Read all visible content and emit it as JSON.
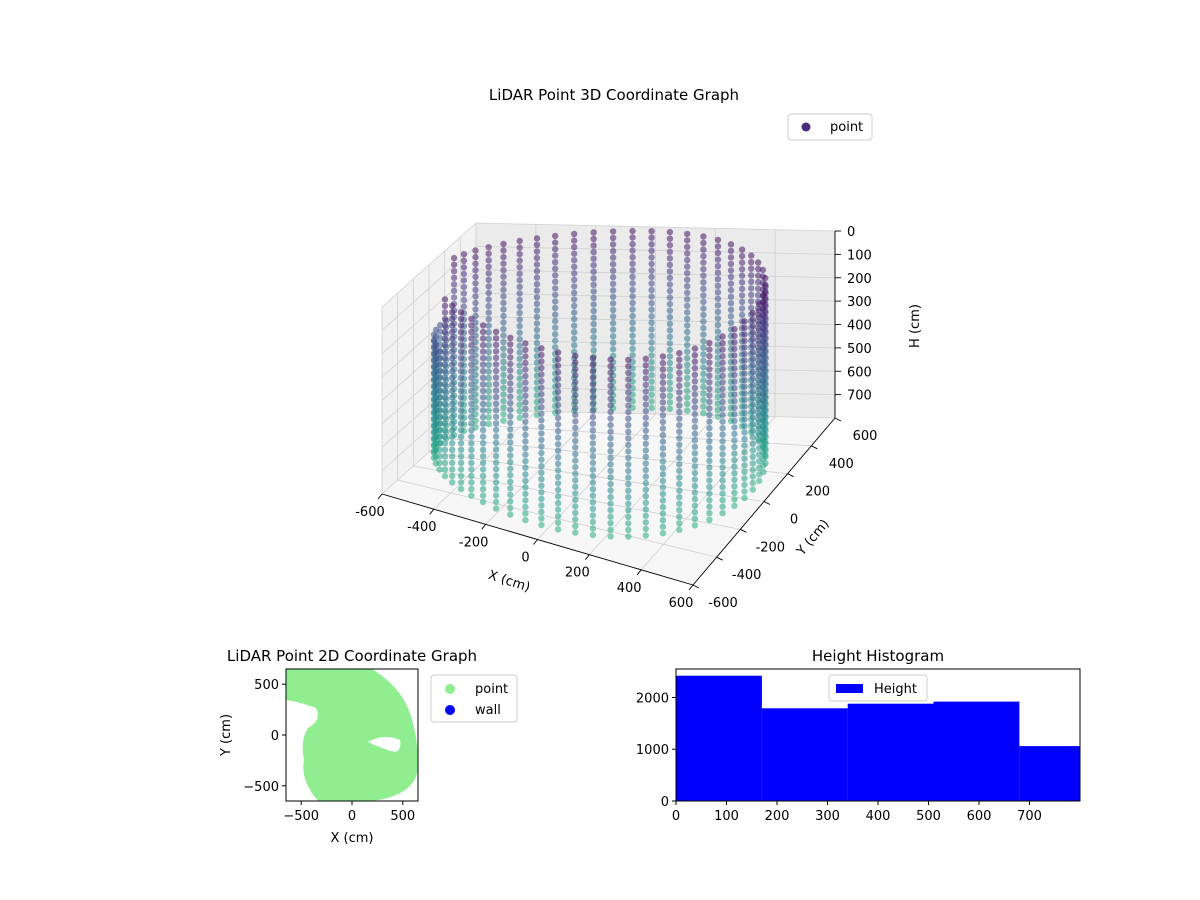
{
  "chart_data": [
    {
      "type": "scatter",
      "projection": "3d",
      "title": "LiDAR Point 3D Coordinate Graph",
      "xlabel": "X (cm)",
      "ylabel": "Y (cm)",
      "zlabel": "H (cm)",
      "xlim": [
        -600,
        600
      ],
      "ylim": [
        -600,
        600
      ],
      "zlim": [
        0,
        800
      ],
      "z_inverted": true,
      "x_ticks": [
        -600,
        -400,
        -200,
        0,
        200,
        400,
        600
      ],
      "y_ticks": [
        -600,
        -400,
        -200,
        0,
        200,
        400,
        600
      ],
      "z_ticks": [
        0,
        100,
        200,
        300,
        400,
        500,
        600,
        700
      ],
      "colormap": "viridis",
      "legend": {
        "placement": "top-right",
        "entries": [
          {
            "label": "point",
            "color": "#472d7b"
          }
        ]
      },
      "grid": true,
      "series": [
        {
          "name": "point",
          "points": "cylindrical wall surface, radius ~550 cm, heights 0-800 cm"
        }
      ]
    },
    {
      "type": "scatter",
      "title": "LiDAR Point 2D Coordinate Graph",
      "xlabel": "X (cm)",
      "ylabel": "Y (cm)",
      "xlim": [
        -650,
        650
      ],
      "ylim": [
        -650,
        650
      ],
      "x_ticks": [
        -500,
        0,
        500
      ],
      "y_ticks": [
        -500,
        0,
        500
      ],
      "legend": {
        "placement": "outside-right",
        "entries": [
          {
            "label": "point",
            "color": "#90ee90"
          },
          {
            "label": "wall",
            "color": "#0000ff"
          }
        ]
      },
      "grid": false
    },
    {
      "type": "bar",
      "title": "Height Histogram",
      "xlabel": "",
      "ylabel": "",
      "bin_edges": [
        0,
        170,
        340,
        510,
        680,
        800
      ],
      "values": [
        2420,
        1790,
        1880,
        1920,
        1060
      ],
      "xlim": [
        0,
        800
      ],
      "ylim": [
        0,
        2550
      ],
      "x_ticks": [
        0,
        100,
        200,
        300,
        400,
        500,
        600,
        700
      ],
      "y_ticks": [
        0,
        1000,
        2000
      ],
      "color": "#0000ff",
      "legend": {
        "placement": "upper-center",
        "entries": [
          {
            "label": "Height",
            "color": "#0000ff"
          }
        ]
      },
      "grid": false
    }
  ]
}
